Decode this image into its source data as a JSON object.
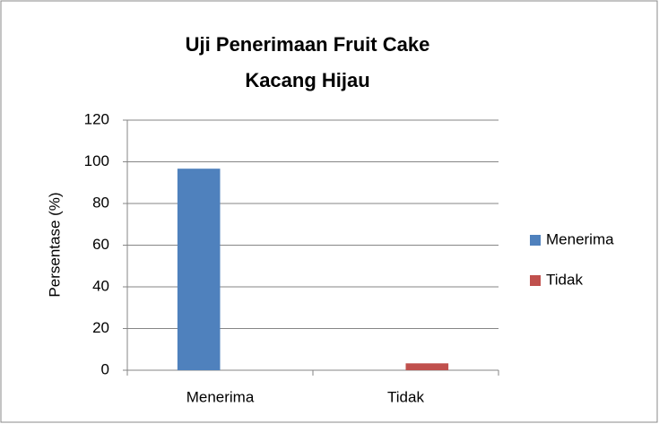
{
  "chart_data": {
    "type": "bar",
    "title": "Uji Penerimaan Fruit Cake Kacang Hijau",
    "y_label": "Persentase (%)",
    "categories": [
      "Menerima",
      "Tidak"
    ],
    "series": [
      {
        "name": "Menerima",
        "color": "#4f81bd",
        "values": [
          96.7,
          null
        ]
      },
      {
        "name": "Tidak",
        "color": "#c0504d",
        "values": [
          null,
          3.3
        ]
      }
    ],
    "ylim": [
      0,
      120
    ],
    "yticks": [
      0,
      20,
      40,
      60,
      80,
      100,
      120
    ],
    "grid": true,
    "legend": "right"
  }
}
